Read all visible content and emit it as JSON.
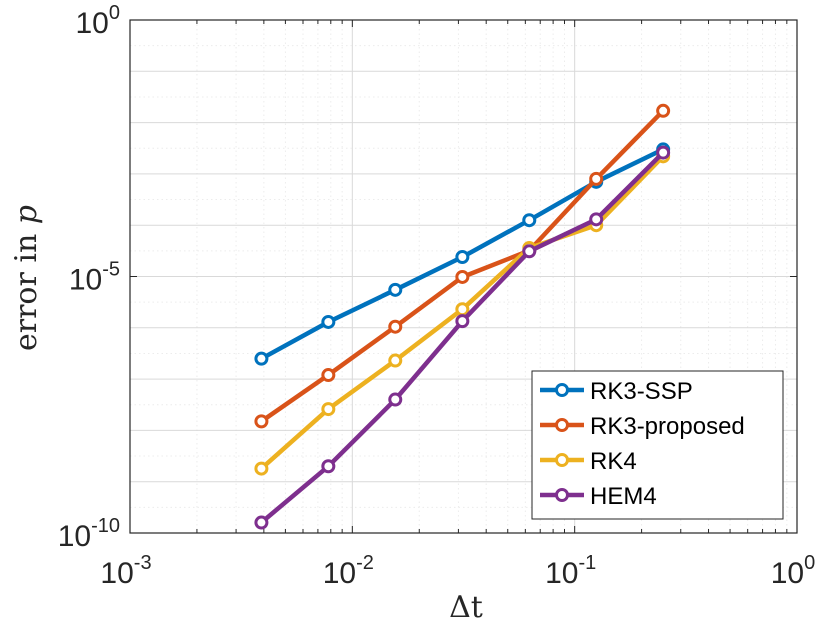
{
  "chart_data": {
    "type": "line",
    "xscale": "log",
    "yscale": "log",
    "xlim": [
      0.001,
      1
    ],
    "ylim": [
      1e-10,
      1
    ],
    "x_ticks": [
      {
        "base": "10",
        "exp": "-3"
      },
      {
        "base": "10",
        "exp": "-2"
      },
      {
        "base": "10",
        "exp": "-1"
      },
      {
        "base": "10",
        "exp": "0"
      }
    ],
    "y_ticks": [
      {
        "base": "10",
        "exp": "-10"
      },
      {
        "base": "10",
        "exp": "-5"
      },
      {
        "base": "10",
        "exp": "0"
      }
    ],
    "xlabel": "Δt",
    "ylabel": {
      "text": "error in ",
      "var": "p"
    },
    "grid": true,
    "legend_position": "bottom-right",
    "x": [
      0.0039,
      0.0078,
      0.0156,
      0.03125,
      0.0625,
      0.125,
      0.25
    ],
    "series": [
      {
        "name": "RK3-SSP",
        "color": "#0072BD",
        "values": [
          2.5e-07,
          1.3e-06,
          5.5e-06,
          2.4e-05,
          0.000125,
          0.0007,
          0.003
        ]
      },
      {
        "name": "RK3-proposed",
        "color": "#D95319",
        "values": [
          1.5e-08,
          1.2e-07,
          1.05e-06,
          9.8e-06,
          3.2e-05,
          0.0008,
          0.017
        ]
      },
      {
        "name": "RK4",
        "color": "#EDB120",
        "values": [
          1.8e-09,
          2.6e-08,
          2.3e-07,
          2.3e-06,
          3.6e-05,
          0.0001,
          0.0022
        ]
      },
      {
        "name": "HEM4",
        "color": "#7E2F8E",
        "values": [
          1.6e-10,
          2e-09,
          4e-08,
          1.35e-06,
          3.1e-05,
          0.00013,
          0.0026
        ]
      }
    ]
  }
}
